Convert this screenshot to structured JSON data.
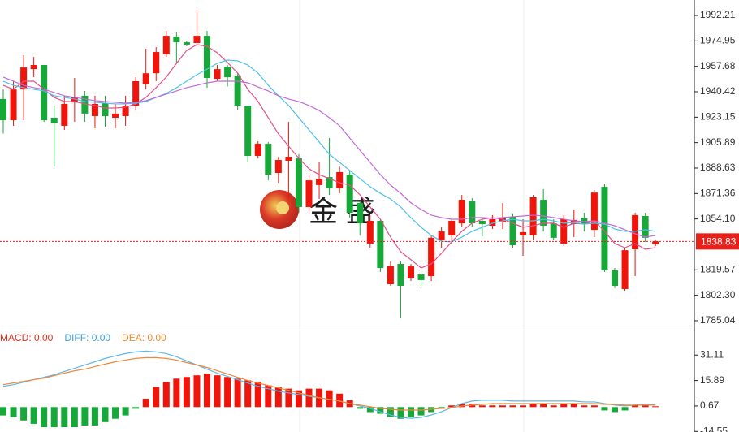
{
  "chart_data": [
    {
      "type": "candlestick",
      "open": [
        1935.5,
        1921.1,
        1942.0,
        1955.8,
        1958.6,
        1922.8,
        1917.3,
        1933.2,
        1937.7,
        1923.9,
        1932.7,
        1922.8,
        1923.9,
        1931.0,
        1945.4,
        1953.0,
        1965.8,
        1977.9,
        1974.0,
        1973.5,
        1978.4,
        1949.2,
        1957.5,
        1951.4,
        1931.0,
        1896.9,
        1905.1,
        1885.3,
        1893.6,
        1895.2,
        1862.2,
        1877.1,
        1882.5,
        1874.8,
        1884.2,
        1864.9,
        1837.4,
        1852.8,
        1809.8,
        1823.6,
        1814.2,
        1816.4,
        1815.3,
        1839.6,
        1842.9,
        1851.1,
        1866.0,
        1852.8,
        1849.5,
        1851.7,
        1855.6,
        1842.9,
        1842.9,
        1867.1,
        1851.1,
        1837.4,
        1850.6,
        1854.5,
        1846.7,
        1875.9,
        1819.2,
        1806.5,
        1833.5,
        1856.1,
        1836.8
      ],
      "high": [
        1942,
        1947.6,
        1965.2,
        1964.1,
        1958.6,
        1931,
        1937.7,
        1949.8,
        1941,
        1937.7,
        1937.7,
        1932.2,
        1937.7,
        1950.3,
        1969.6,
        1970.7,
        1981.7,
        1980.6,
        1975.1,
        1996,
        1981.7,
        1958.6,
        1958.6,
        1953,
        1931,
        1906.8,
        1906.2,
        1896.3,
        1920,
        1898,
        1884.2,
        1892.5,
        1909,
        1889.7,
        1887,
        1866,
        1856.7,
        1853.9,
        1825.2,
        1825.2,
        1823.6,
        1818.1,
        1842.9,
        1848.4,
        1853.9,
        1870.4,
        1868.2,
        1855,
        1856.7,
        1864.9,
        1857.8,
        1853.9,
        1870.4,
        1874.3,
        1853.9,
        1856.7,
        1860.5,
        1858.3,
        1873.7,
        1878.1,
        1820.8,
        1834.6,
        1858.3,
        1858.3,
        1840.1
      ],
      "low": [
        1912,
        1917.3,
        1921.1,
        1950.3,
        1920,
        1889.7,
        1914.5,
        1920,
        1920,
        1915.6,
        1916.7,
        1915.6,
        1917.3,
        1927.7,
        1942,
        1947.6,
        1964.1,
        1960.2,
        1971.3,
        1972.4,
        1943.1,
        1947.6,
        1944,
        1928.3,
        1892.5,
        1895.2,
        1880.3,
        1878.7,
        1867.7,
        1858.3,
        1858.3,
        1867.7,
        1870.4,
        1871.5,
        1855,
        1842.8,
        1834.6,
        1818.1,
        1808.7,
        1786.6,
        1812,
        1808.2,
        1812,
        1834.6,
        1837.4,
        1848.4,
        1848.4,
        1842.3,
        1847.3,
        1847.3,
        1834.6,
        1829.1,
        1840.1,
        1845.6,
        1839.6,
        1835.7,
        1841.8,
        1845.6,
        1841.8,
        1818.1,
        1807.1,
        1805.4,
        1815.3,
        1838.5,
        1835.7
      ],
      "close": [
        1921.1,
        1942.0,
        1956.9,
        1958.6,
        1921.1,
        1918.9,
        1932.2,
        1936.6,
        1925.6,
        1932.2,
        1923.9,
        1925.6,
        1931.0,
        1947.6,
        1953.0,
        1967.4,
        1978.4,
        1974.0,
        1972.4,
        1978.4,
        1949.8,
        1955.8,
        1950.3,
        1931.0,
        1896.9,
        1905.1,
        1884.2,
        1894.1,
        1896.3,
        1862.2,
        1880.3,
        1881.4,
        1874.8,
        1885.9,
        1858.3,
        1851.1,
        1852.8,
        1820.8,
        1822.0,
        1808.7,
        1821.9,
        1812.6,
        1841.3,
        1845.6,
        1852.8,
        1867.1,
        1851.1,
        1850.6,
        1853.9,
        1854.5,
        1836.3,
        1845.1,
        1868.8,
        1849.5,
        1841.3,
        1853.9,
        1853.4,
        1850.6,
        1872.0,
        1819.2,
        1808.7,
        1832.9,
        1856.7,
        1841.3,
        1838.8
      ],
      "up_color": "#f0140a",
      "down_color": "#17a83a",
      "series": [
        {
          "color": "#e4508a",
          "values": [
            1944.8,
            1942.1,
            1947.6,
            1947.6,
            1942.1,
            1936.6,
            1933.8,
            1933.8,
            1932.2,
            1931.1,
            1929.4,
            1929.4,
            1930.0,
            1932.2,
            1936.6,
            1943.2,
            1950.4,
            1959.7,
            1968.5,
            1972.4,
            1971.3,
            1966.9,
            1960.3,
            1953.1,
            1942.1,
            1933.8,
            1922.8,
            1911.8,
            1903.5,
            1895.3,
            1888.1,
            1884.2,
            1881.5,
            1878.7,
            1877.1,
            1870.5,
            1862.2,
            1853.9,
            1841.8,
            1831.9,
            1826.4,
            1820.9,
            1823.6,
            1830.8,
            1838.5,
            1845.7,
            1851.2,
            1853.9,
            1855.0,
            1853.9,
            1851.2,
            1848.4,
            1849.5,
            1851.2,
            1851.2,
            1848.4,
            1851.2,
            1850.6,
            1852.8,
            1845.7,
            1837.4,
            1834.6,
            1837.4,
            1833.5,
            1834.6
          ]
        },
        {
          "color": "#4cc0e8",
          "values": [
            1947.6,
            1944.8,
            1943.2,
            1942.1,
            1941.0,
            1937.7,
            1936.6,
            1935.5,
            1933.8,
            1933.3,
            1932.7,
            1932.2,
            1932.2,
            1932.7,
            1933.8,
            1936.6,
            1939.3,
            1943.2,
            1947.6,
            1952.0,
            1955.8,
            1959.7,
            1961.9,
            1961.4,
            1958.6,
            1953.1,
            1944.8,
            1937.7,
            1931.1,
            1922.8,
            1914.5,
            1906.3,
            1898.0,
            1892.5,
            1887.0,
            1881.5,
            1876.0,
            1871.5,
            1867.7,
            1862.2,
            1855.0,
            1848.4,
            1842.9,
            1839.0,
            1838.5,
            1841.8,
            1845.7,
            1848.4,
            1851.2,
            1852.8,
            1853.9,
            1852.8,
            1852.8,
            1853.9,
            1852.8,
            1851.2,
            1851.7,
            1850.6,
            1851.2,
            1850.6,
            1847.3,
            1845.7,
            1845.7,
            1846.8,
            1845.7
          ]
        },
        {
          "color": "#c26ad8",
          "values": [
            1950.4,
            1947.6,
            1944.8,
            1943.2,
            1942.1,
            1939.9,
            1937.7,
            1936.6,
            1935.5,
            1934.4,
            1933.8,
            1933.3,
            1932.7,
            1933.3,
            1934.4,
            1936.6,
            1938.8,
            1941.0,
            1943.2,
            1944.8,
            1946.5,
            1947.6,
            1947.6,
            1947.6,
            1946.5,
            1943.7,
            1941.0,
            1937.7,
            1935.5,
            1933.8,
            1931.1,
            1927.7,
            1922.8,
            1917.3,
            1909.0,
            1900.7,
            1892.5,
            1884.2,
            1877.1,
            1871.5,
            1865.0,
            1860.5,
            1856.7,
            1855.0,
            1853.9,
            1853.9,
            1855.0,
            1855.0,
            1854.5,
            1855.0,
            1855.6,
            1856.1,
            1856.7,
            1856.1,
            1855.0,
            1853.9,
            1852.8,
            1852.3,
            1852.8,
            1851.2,
            1849.5,
            1846.8,
            1844.0,
            1841.8,
            1842.9
          ]
        }
      ],
      "ylim": [
        1779.5,
        2002.7
      ],
      "yticks": [
        1992.21,
        1974.95,
        1957.68,
        1940.42,
        1923.15,
        1905.89,
        1888.63,
        1871.36,
        {
          "value": 1854.1,
          "label": "1854.10"
        },
        1819.57,
        {
          "value": 1802.3,
          "label": "1802.30"
        },
        1785.04
      ],
      "current_price": 1838.83,
      "current_price_color": "#e8201a",
      "watermark": "金 盛"
    },
    {
      "type": "macd",
      "legend": [
        {
          "label": "MACD: 0.00",
          "color": "#e0301e"
        },
        {
          "label": "DIFF: 0.00",
          "color": "#3aa0e0"
        },
        {
          "label": "DEA: 0.00",
          "color": "#f08a2c"
        }
      ],
      "histogram": {
        "up_color": "#f0140a",
        "down_color": "#17a83a",
        "values": [
          -5,
          -6,
          -8,
          -10,
          -12,
          -12,
          -12,
          -12,
          -11,
          -11,
          -9,
          -7,
          -5,
          -1,
          5,
          12,
          15,
          17,
          18,
          19,
          20,
          19,
          18,
          17,
          16,
          15,
          13,
          12,
          11,
          10,
          11,
          11,
          10,
          8,
          4,
          -1,
          -3,
          -4,
          -6,
          -7,
          -6,
          -5,
          -3,
          -1,
          1,
          2,
          2,
          1,
          1,
          1,
          1,
          1,
          2,
          2,
          1,
          2,
          2,
          1,
          1,
          -2,
          -3,
          -2,
          1,
          1,
          0.5
        ]
      },
      "series": [
        {
          "color": "#5bb8e8",
          "values": [
            12.4,
            13.4,
            14.9,
            16.4,
            17.8,
            19.3,
            21.3,
            23.2,
            25.2,
            27.1,
            29.1,
            30.6,
            32.0,
            33.0,
            33.5,
            33.0,
            32.0,
            30.1,
            27.6,
            25.2,
            22.7,
            20.3,
            18.3,
            16.4,
            14.4,
            12.4,
            11.0,
            9.5,
            8.5,
            7.5,
            6.5,
            5.6,
            4.6,
            3.6,
            2.1,
            0.67,
            -0.8,
            -2.8,
            -4.7,
            -6.2,
            -6.7,
            -6.2,
            -4.7,
            -2.8,
            -0.3,
            2.1,
            3.6,
            4.1,
            4.1,
            4.1,
            3.6,
            3.6,
            3.6,
            3.6,
            3.6,
            3.6,
            3.6,
            3.1,
            3.1,
            2.1,
            1.2,
            0.67,
            1.2,
            1.6,
            1.2
          ]
        },
        {
          "color": "#f0883a",
          "values": [
            13.4,
            14.4,
            15.4,
            16.4,
            17.3,
            18.8,
            20.3,
            21.7,
            22.7,
            24.2,
            25.7,
            27.1,
            28.1,
            29.1,
            29.6,
            29.6,
            29.1,
            28.1,
            26.6,
            25.2,
            23.7,
            21.7,
            19.8,
            17.8,
            15.9,
            14.4,
            12.9,
            11.5,
            10.0,
            8.5,
            7.0,
            5.6,
            4.6,
            3.6,
            2.1,
            1.2,
            0.2,
            -0.8,
            -1.3,
            -1.8,
            -1.8,
            -1.8,
            -1.3,
            -0.8,
            -0.3,
            0.67,
            1.2,
            1.6,
            2.1,
            2.1,
            2.1,
            2.1,
            2.1,
            2.1,
            2.1,
            2.1,
            2.1,
            2.1,
            2.1,
            1.6,
            1.6,
            1.2,
            1.2,
            1.2,
            1.2
          ]
        }
      ],
      "ylim": [
        -14.9,
        45.3
      ],
      "yticks": [
        31.11,
        15.89,
        0.67,
        -14.55
      ]
    }
  ]
}
